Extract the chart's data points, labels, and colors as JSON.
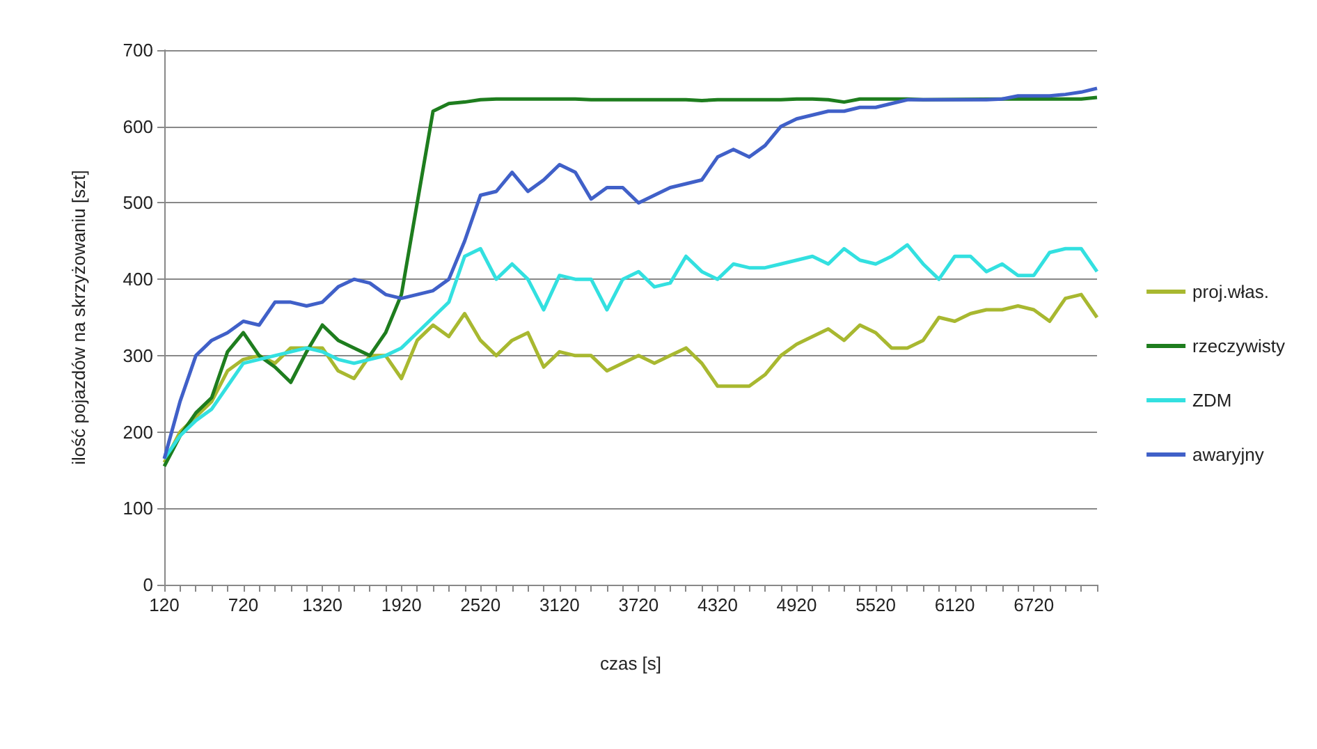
{
  "chart_data": {
    "type": "line",
    "xlabel": "czas [s]",
    "ylabel": "ilość pojazdów na skrzyżowaniu [szt]",
    "categories": [
      "120",
      null,
      null,
      null,
      null,
      "720",
      null,
      null,
      null,
      null,
      "1320",
      null,
      null,
      null,
      null,
      "1920",
      null,
      null,
      null,
      null,
      "2520",
      null,
      null,
      null,
      null,
      "3120",
      null,
      null,
      null,
      null,
      "3720",
      null,
      null,
      null,
      null,
      "4320",
      null,
      null,
      null,
      null,
      "4920",
      null,
      null,
      null,
      null,
      "5520",
      null,
      null,
      null,
      null,
      "6120",
      null,
      null,
      null,
      null,
      "6720",
      null,
      null,
      null,
      null
    ],
    "series": [
      {
        "name": "proj.włas.",
        "color": "#a8b830",
        "values": [
          160,
          200,
          220,
          240,
          280,
          295,
          300,
          290,
          310,
          310,
          310,
          280,
          270,
          300,
          300,
          270,
          320,
          340,
          325,
          355,
          320,
          300,
          320,
          330,
          285,
          305,
          300,
          300,
          280,
          290,
          300,
          290,
          300,
          310,
          290,
          260,
          260,
          260,
          275,
          300,
          315,
          325,
          335,
          320,
          340,
          330,
          310,
          310,
          320,
          350,
          345,
          355,
          360,
          360,
          365,
          360,
          345,
          375,
          380,
          350
        ]
      },
      {
        "name": "rzeczywisty",
        "color": "#1e7d1e",
        "values": [
          155,
          195,
          225,
          245,
          305,
          330,
          300,
          285,
          265,
          305,
          340,
          320,
          310,
          300,
          330,
          380,
          500,
          620,
          630,
          632,
          635,
          636,
          636,
          636,
          636,
          636,
          636,
          635,
          635,
          635,
          635,
          635,
          635,
          635,
          634,
          635,
          635,
          635,
          635,
          635,
          636,
          636,
          635,
          632,
          636,
          636,
          636,
          636,
          635,
          null,
          null,
          null,
          null,
          636,
          636,
          636,
          636,
          636,
          636,
          638
        ]
      },
      {
        "name": "ZDM",
        "color": "#33e0e0",
        "values": [
          165,
          195,
          215,
          230,
          260,
          290,
          295,
          300,
          305,
          310,
          305,
          295,
          290,
          295,
          300,
          310,
          330,
          350,
          370,
          430,
          440,
          400,
          420,
          400,
          360,
          405,
          400,
          400,
          360,
          400,
          410,
          390,
          395,
          430,
          410,
          400,
          420,
          415,
          415,
          420,
          425,
          430,
          420,
          440,
          425,
          420,
          430,
          445,
          420,
          400,
          430,
          430,
          410,
          420,
          405,
          405,
          435,
          440,
          440,
          410
        ]
      },
      {
        "name": "awaryjny",
        "color": "#4060c8",
        "values": [
          165,
          240,
          300,
          320,
          330,
          345,
          340,
          370,
          370,
          365,
          370,
          390,
          400,
          395,
          380,
          375,
          380,
          385,
          400,
          450,
          510,
          515,
          540,
          515,
          530,
          550,
          540,
          505,
          520,
          520,
          500,
          510,
          520,
          525,
          530,
          560,
          570,
          560,
          575,
          600,
          610,
          615,
          620,
          620,
          625,
          625,
          630,
          635,
          635,
          635,
          635,
          635,
          635,
          636,
          640,
          640,
          640,
          642,
          645,
          650
        ]
      }
    ],
    "ylim": [
      0,
      700
    ],
    "yticks": [
      0,
      100,
      200,
      300,
      400,
      500,
      600,
      700
    ],
    "grid": "y",
    "legend": "right",
    "marker": "none",
    "line_style": "solid"
  }
}
